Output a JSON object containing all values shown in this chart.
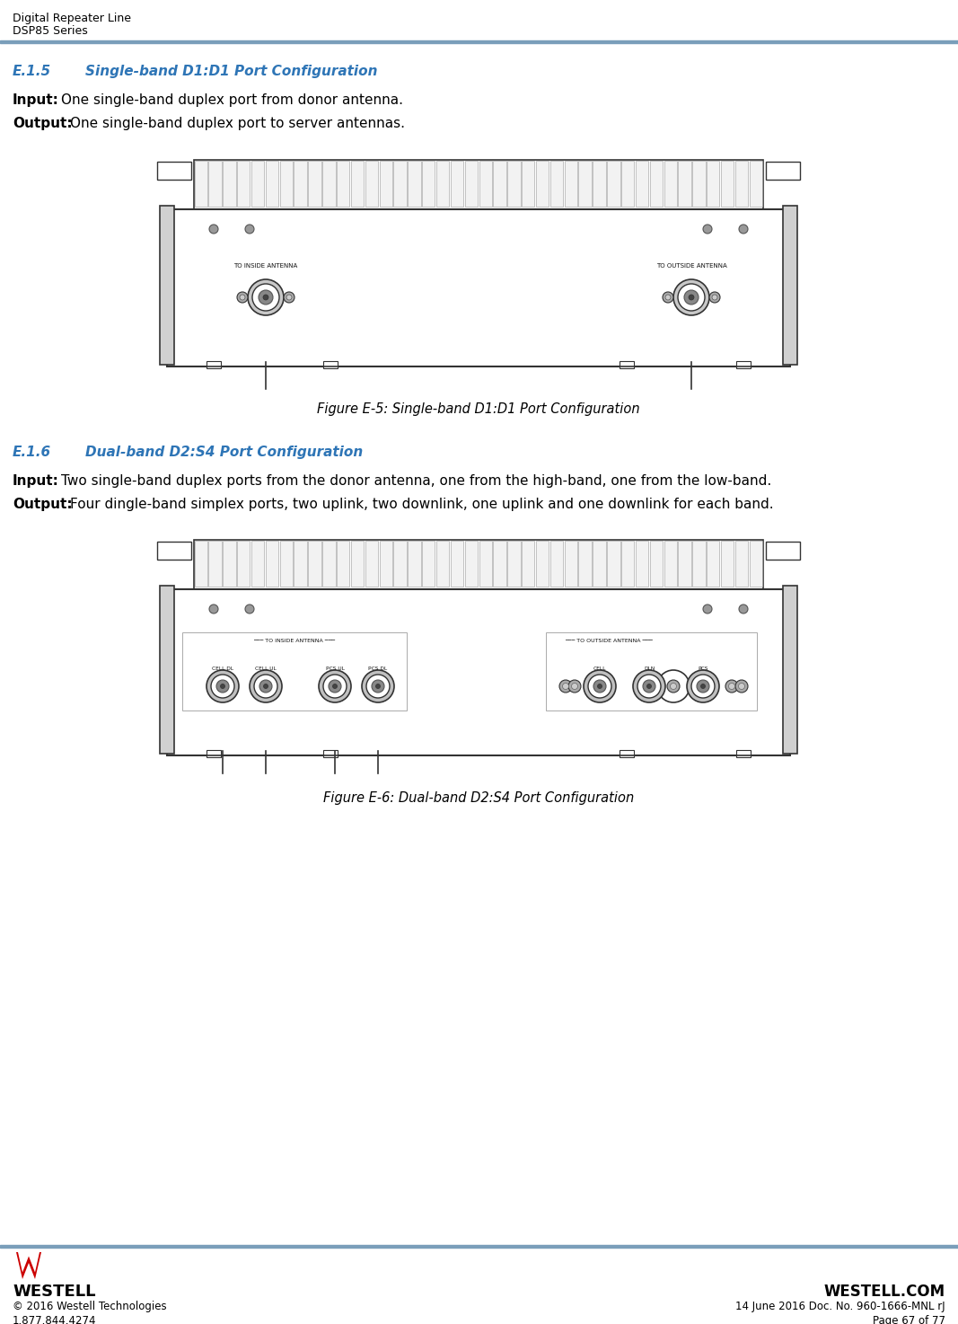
{
  "header_line1": "Digital Repeater Line",
  "header_line2": "DSP85 Series",
  "header_bar_color": "#7a9eba",
  "section1_heading": "E.1.5",
  "section1_heading2": "Single-band D1:D1 Port Configuration",
  "section1_input": "One single-band duplex port from donor antenna.",
  "section1_output": "One single-band duplex port to server antennas.",
  "section1_fig_caption": "Figure E-5: Single-band D1:D1 Port Configuration",
  "section2_heading": "E.1.6",
  "section2_heading2": "Dual-band D2:S4 Port Configuration",
  "section2_input": "Two single-band duplex ports from the donor antenna, one from the high-band, one from the low-band.",
  "section2_output": "Four dingle-band simplex ports, two uplink, two downlink, one uplink and one downlink for each band.",
  "section2_fig_caption": "Figure E-6: Dual-band D2:S4 Port Configuration",
  "footer_company": "WESTELL",
  "footer_website": "WESTELL.COM",
  "footer_copyright": "© 2016 Westell Technologies",
  "footer_date": "14 June 2016 Doc. No. 960-1666-MNL rJ",
  "footer_phone": "1.877.844.4274",
  "footer_page": "Page 67 of 77",
  "text_color": "#000000",
  "heading_color": "#2e75b6",
  "bg_color": "#ffffff",
  "device_outline_color": "#333333",
  "label_inside": "TO INSIDE ANTENNA",
  "label_outside": "TO OUTSIDE ANTENNA",
  "port_labels_left": [
    "CELL DL",
    "CELL UL",
    "PCS UL",
    "PCS DL"
  ],
  "port_labels_right": [
    "CELL",
    "DLN",
    "PCS"
  ]
}
